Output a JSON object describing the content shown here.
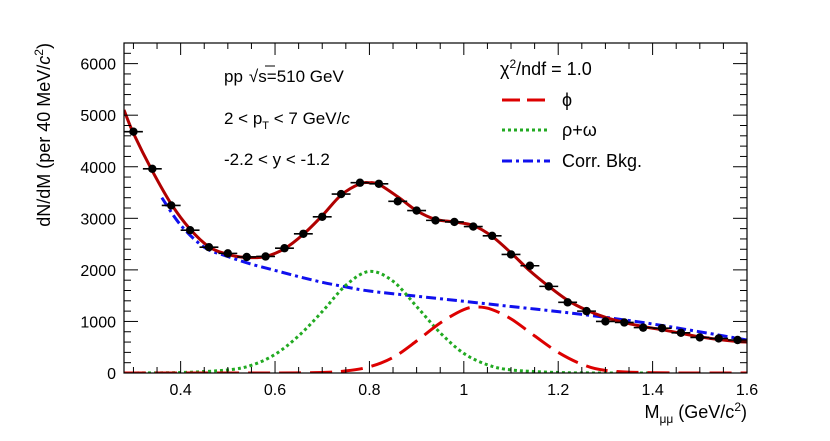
{
  "chart_data": {
    "type": "line",
    "title": "",
    "xlabel": {
      "main": "M",
      "sub": "μμ",
      "unit_prefix": " (GeV/c",
      "unit_sup": "2",
      "unit_suffix": ")"
    },
    "ylabel": {
      "main": "dN/dM (per 40 MeV/",
      "c": "c",
      "sup": "2",
      "close": ")"
    },
    "xlim": [
      0.28,
      1.6
    ],
    "ylim": [
      0,
      6400
    ],
    "x_ticks": [
      0.4,
      0.6,
      0.8,
      1.0,
      1.2,
      1.4,
      1.6
    ],
    "x_tick_labels": [
      "0.4",
      "0.6",
      "0.8",
      "1",
      "1.2",
      "1.4",
      "1.6"
    ],
    "y_ticks": [
      0,
      1000,
      2000,
      3000,
      4000,
      5000,
      6000
    ],
    "y_tick_labels": [
      "0",
      "1000",
      "2000",
      "3000",
      "4000",
      "5000",
      "6000"
    ],
    "annotations": {
      "energy": {
        "pp": "pp",
        "sqrt": "√",
        "s_text": "s=510 GeV"
      },
      "pt": {
        "pre": "2 < p",
        "sub": "T",
        "post": " < 7 GeV/",
        "c": "c"
      },
      "y_range": "-2.2 < y < -1.2",
      "chi2": {
        "chi": "χ",
        "sup": "2",
        "rest": "/ndf = 1.0"
      }
    },
    "legend": {
      "placement": "top-right",
      "entries": [
        {
          "label": "ϕ",
          "color": "#dd0000",
          "style": "long-dash"
        },
        {
          "label": "ρ+ω",
          "color": "#22aa22",
          "style": "dotted"
        },
        {
          "label": "Corr. Bkg.",
          "color": "#1010ee",
          "style": "dash-dot"
        }
      ]
    },
    "data_points": {
      "name": "Data",
      "color": "#000000",
      "x": [
        0.3,
        0.34,
        0.38,
        0.42,
        0.46,
        0.5,
        0.54,
        0.58,
        0.62,
        0.66,
        0.7,
        0.74,
        0.78,
        0.82,
        0.86,
        0.9,
        0.94,
        0.98,
        1.02,
        1.06,
        1.1,
        1.14,
        1.18,
        1.22,
        1.26,
        1.3,
        1.34,
        1.38,
        1.42,
        1.46,
        1.5,
        1.54,
        1.58
      ],
      "y": [
        4680,
        3960,
        3250,
        2770,
        2440,
        2320,
        2250,
        2260,
        2420,
        2700,
        3030,
        3470,
        3690,
        3670,
        3330,
        3150,
        2960,
        2930,
        2840,
        2660,
        2300,
        2080,
        1680,
        1370,
        1200,
        1000,
        980,
        880,
        870,
        780,
        690,
        670,
        640
      ],
      "x_error": 0.02,
      "y_error": 50
    },
    "series": [
      {
        "name": "Total fit",
        "color": "#b00000",
        "style": "solid",
        "x": [
          0.28,
          0.3,
          0.34,
          0.38,
          0.42,
          0.46,
          0.5,
          0.54,
          0.58,
          0.62,
          0.66,
          0.7,
          0.74,
          0.78,
          0.8,
          0.82,
          0.86,
          0.9,
          0.94,
          0.98,
          1.02,
          1.06,
          1.1,
          1.14,
          1.18,
          1.22,
          1.26,
          1.3,
          1.34,
          1.38,
          1.42,
          1.46,
          1.5,
          1.54,
          1.58,
          1.6
        ],
        "y": [
          5100,
          4650,
          3920,
          3280,
          2790,
          2450,
          2300,
          2240,
          2260,
          2410,
          2690,
          3050,
          3450,
          3670,
          3690,
          3660,
          3420,
          3150,
          2980,
          2930,
          2860,
          2650,
          2330,
          1980,
          1680,
          1410,
          1220,
          1080,
          980,
          900,
          840,
          770,
          700,
          650,
          610,
          600
        ]
      },
      {
        "name": "ϕ",
        "color": "#dd0000",
        "style": "long-dash",
        "x": [
          0.28,
          0.6,
          0.7,
          0.75,
          0.8,
          0.85,
          0.9,
          0.95,
          1.0,
          1.03,
          1.06,
          1.1,
          1.15,
          1.2,
          1.25,
          1.3,
          1.4,
          1.6
        ],
        "y": [
          0,
          0,
          10,
          40,
          120,
          300,
          620,
          970,
          1230,
          1280,
          1230,
          1050,
          720,
          400,
          170,
          50,
          5,
          0
        ]
      },
      {
        "name": "ρ+ω",
        "color": "#22aa22",
        "style": "dotted",
        "x": [
          0.28,
          0.4,
          0.5,
          0.55,
          0.6,
          0.65,
          0.7,
          0.75,
          0.8,
          0.85,
          0.9,
          0.95,
          1.0,
          1.05,
          1.1,
          1.2,
          1.3,
          1.4
        ],
        "y": [
          0,
          10,
          60,
          150,
          360,
          720,
          1190,
          1700,
          1970,
          1780,
          1290,
          780,
          380,
          160,
          60,
          10,
          0,
          0
        ]
      },
      {
        "name": "Corr. Bkg.",
        "color": "#1010ee",
        "style": "dash-dot",
        "x": [
          0.36,
          0.4,
          0.45,
          0.5,
          0.55,
          0.6,
          0.65,
          0.7,
          0.75,
          0.8,
          0.9,
          1.0,
          1.1,
          1.2,
          1.3,
          1.4,
          1.5,
          1.6
        ],
        "y": [
          3400,
          2870,
          2440,
          2260,
          2110,
          1990,
          1870,
          1760,
          1670,
          1590,
          1490,
          1390,
          1290,
          1190,
          1080,
          950,
          800,
          640
        ]
      }
    ]
  }
}
